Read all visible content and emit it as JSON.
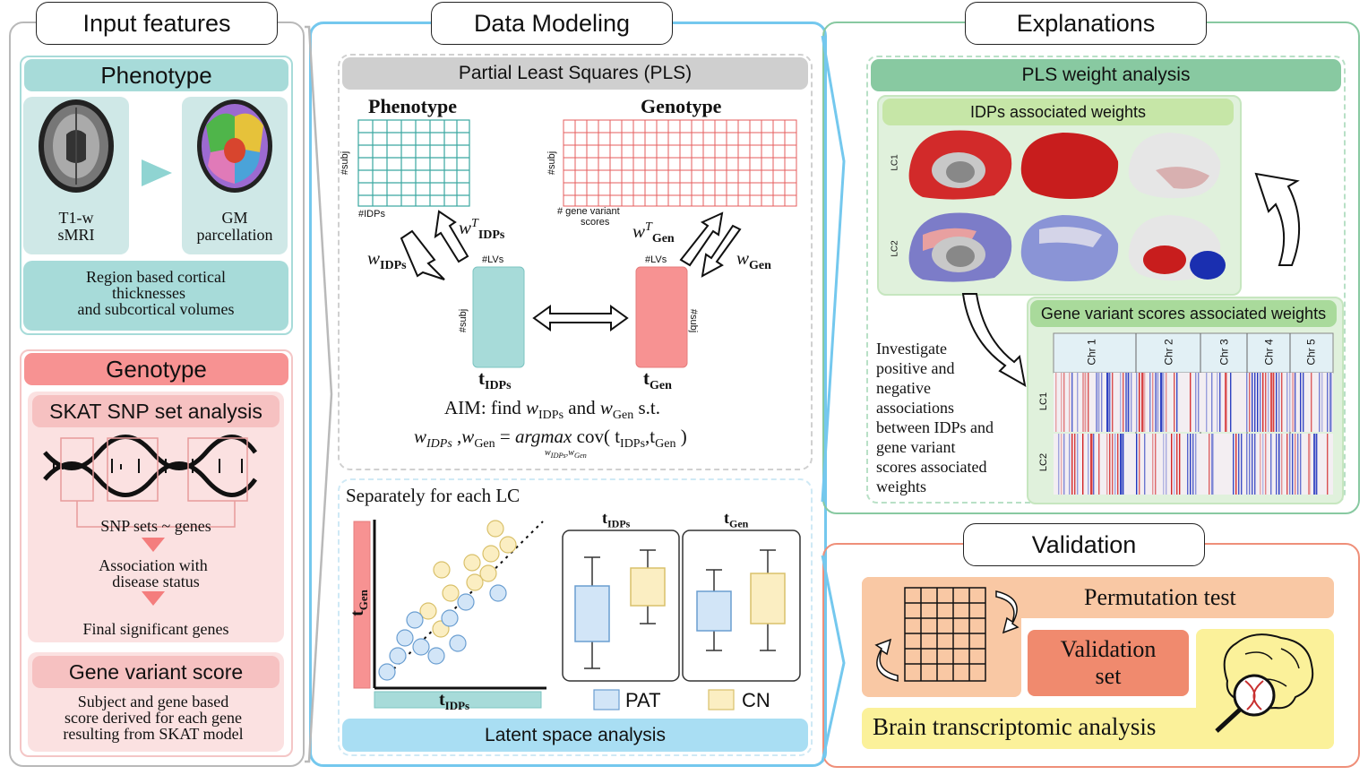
{
  "sections": {
    "input": "Input features",
    "modeling": "Data Modeling",
    "explanations": "Explanations",
    "validation": "Validation"
  },
  "phenotype": {
    "title": "Phenotype",
    "t1": "T1-w",
    "smri": "sMRI",
    "gm": "GM",
    "parc": "parcellation",
    "desc1": "Region based cortical",
    "desc2": "thicknesses",
    "desc3": "and subcortical volumes"
  },
  "genotype": {
    "title": "Genotype",
    "skat": "SKAT SNP set analysis",
    "snp_sets": "SNP sets ~ genes",
    "assoc1": "Association with",
    "assoc2": "disease status",
    "final": "Final significant genes",
    "gvs_title": "Gene variant score",
    "gvs1": "Subject and gene based",
    "gvs2": "score derived for each gene",
    "gvs3": "resulting from SKAT model"
  },
  "pls": {
    "title": "Partial Least Squares (PLS)",
    "phen": "Phenotype",
    "gen": "Genotype",
    "subj": "#subj",
    "idps": "#IDPs",
    "gv1": "# gene variant",
    "gv2": "scores",
    "lvs": "#LVs",
    "aim_prefix": "AIM: find",
    "and": "and",
    "st": "s.t.",
    "argmax": "argmax",
    "cov": "cov( t",
    "comma": ",t",
    "close": ")"
  },
  "latent": {
    "separately": "Separately for each LC",
    "title": "Latent space analysis",
    "pat": "PAT",
    "cn": "CN"
  },
  "expl": {
    "pls_weight": "PLS weight analysis",
    "idps_weights": "IDPs associated weights",
    "gene_weights": "Gene variant scores associated weights",
    "lc1": "LC1",
    "lc2": "LC2",
    "chrs": [
      "Chr 1",
      "Chr 2",
      "Chr 3",
      "Chr 4",
      "Chr 5"
    ],
    "inv": [
      "Investigate",
      "positive and",
      "negative",
      "associations",
      "between IDPs and",
      "gene variant",
      "scores associated",
      "weights"
    ]
  },
  "valid": {
    "perm": "Permutation test",
    "vset1": "Validation",
    "vset2": "set",
    "brain": "Brain transcriptomic analysis"
  },
  "colors": {
    "teal": "#4fb3b0",
    "teal_light": "#a7dbd9",
    "red": "#f47d7d",
    "blue": "#6cc7ec",
    "green": "#7fc89b",
    "orange": "#f08a6e"
  }
}
